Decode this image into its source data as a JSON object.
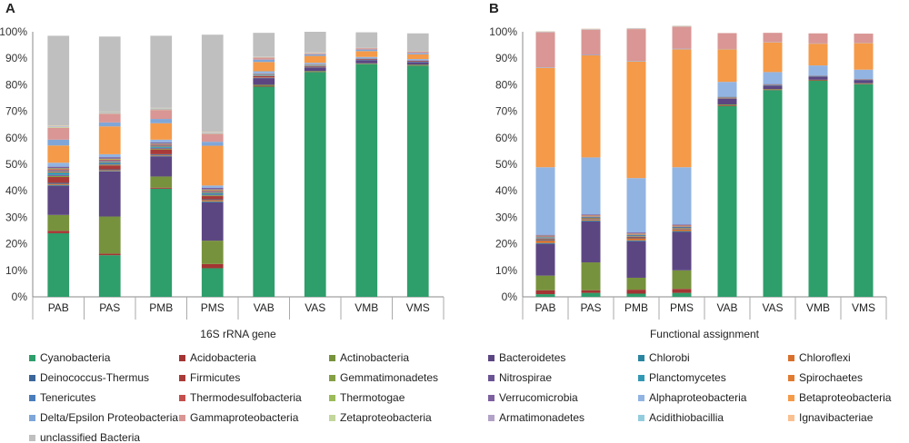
{
  "chart_data": [
    {
      "panel": "A",
      "type": "bar",
      "stacked": true,
      "xlabel": "16S rRNA gene",
      "ylabel": "",
      "ylim": [
        0,
        100
      ],
      "yticks": [
        "0%",
        "10%",
        "20%",
        "30%",
        "40%",
        "50%",
        "60%",
        "70%",
        "80%",
        "90%",
        "100%"
      ],
      "categories": [
        "PAB",
        "PAS",
        "PMB",
        "PMS",
        "VAB",
        "VAS",
        "VMB",
        "VMS"
      ],
      "series": [
        {
          "name": "Cyanobacteria",
          "values": [
            24,
            15.7,
            40.8,
            10.8,
            79.3,
            84.8,
            87.8,
            87.2
          ]
        },
        {
          "name": "Acidobacteria",
          "values": [
            0.9,
            0.6,
            0.4,
            1.6,
            0.3,
            0.1,
            0.1,
            0.1
          ]
        },
        {
          "name": "Actinobacteria",
          "values": [
            6,
            14,
            4.2,
            8.8,
            0.4,
            0.3,
            0.2,
            0.3
          ]
        },
        {
          "name": "Bacteroidetes",
          "values": [
            11,
            17,
            7.6,
            14.5,
            2.5,
            1.3,
            1.2,
            0.9
          ]
        },
        {
          "name": "Chlorobi",
          "values": [
            0.3,
            0.2,
            0.2,
            0.3,
            0.1,
            0.1,
            0.1,
            0.1
          ]
        },
        {
          "name": "Chloroflexi",
          "values": [
            0.4,
            0.3,
            0.3,
            0.5,
            0.1,
            0.1,
            0,
            0
          ]
        },
        {
          "name": "Deinococcus-Thermus",
          "values": [
            0.4,
            0.3,
            0.3,
            0.3,
            0.1,
            0.1,
            0.1,
            0.1
          ]
        },
        {
          "name": "Firmicutes",
          "values": [
            2.2,
            1.5,
            1.8,
            1.2,
            0.5,
            0.2,
            0.3,
            0.3
          ]
        },
        {
          "name": "Gemmatimonadetes",
          "values": [
            0.4,
            0.3,
            0.3,
            0.3,
            0.1,
            0.1,
            0,
            0
          ]
        },
        {
          "name": "Nitrospirae",
          "values": [
            0.4,
            0.3,
            0.3,
            0.3,
            0.1,
            0.1,
            0,
            0
          ]
        },
        {
          "name": "Planctomycetes",
          "values": [
            0.9,
            0.6,
            0.5,
            0.6,
            0.2,
            0.1,
            0.1,
            0.1
          ]
        },
        {
          "name": "Spirochaetes",
          "values": [
            0.4,
            0.3,
            0.3,
            0.3,
            0.1,
            0.1,
            0,
            0
          ]
        },
        {
          "name": "Tenericutes",
          "values": [
            0.4,
            0.3,
            0.3,
            0.3,
            0.1,
            0.1,
            0,
            0
          ]
        },
        {
          "name": "Thermodesulfobacteria",
          "values": [
            0.5,
            0.4,
            0.3,
            0.4,
            0.1,
            0.1,
            0,
            0
          ]
        },
        {
          "name": "Thermotogae",
          "values": [
            0.3,
            0.3,
            0.2,
            0.3,
            0.1,
            0.1,
            0,
            0
          ]
        },
        {
          "name": "Verrucomicrobia",
          "values": [
            0.6,
            0.6,
            0.5,
            0.6,
            0.2,
            0.1,
            0.1,
            0.1
          ]
        },
        {
          "name": "Alphaproteobacteria",
          "values": [
            1.5,
            1.1,
            1,
            0.9,
            0.8,
            0.5,
            0.5,
            0.5
          ]
        },
        {
          "name": "Betaproteobacteria",
          "values": [
            6.5,
            10.5,
            6.2,
            15,
            3.5,
            2.6,
            2.2,
            1.8
          ]
        },
        {
          "name": "Delta/Epsilon Proteobacteria",
          "values": [
            2.2,
            1.5,
            1.6,
            1.5,
            0.9,
            0.6,
            0.6,
            0.5
          ]
        },
        {
          "name": "Gammaproteobacteria",
          "values": [
            4.5,
            3.3,
            3.4,
            3,
            0.8,
            0.4,
            0.5,
            0.5
          ]
        },
        {
          "name": "Zetaproteobacteria",
          "values": [
            0.3,
            0.2,
            0.2,
            0.2,
            0.1,
            0.1,
            0.1,
            0.1
          ]
        },
        {
          "name": "Armatimonadetes",
          "values": [
            0.2,
            0.2,
            0.2,
            0.2,
            0.1,
            0,
            0,
            0
          ]
        },
        {
          "name": "Acidithiobacillia",
          "values": [
            0.2,
            0.2,
            0.2,
            0.2,
            0.1,
            0.1,
            0,
            0
          ]
        },
        {
          "name": "Ignavibacteriae",
          "values": [
            0.2,
            0.2,
            0.2,
            0.2,
            0.1,
            0.1,
            0,
            0
          ]
        },
        {
          "name": "unclassified Bacteria",
          "values": [
            33.8,
            28.3,
            27.2,
            36.6,
            8.9,
            7.8,
            5.9,
            6.8
          ]
        }
      ]
    },
    {
      "panel": "B",
      "type": "bar",
      "stacked": true,
      "xlabel": "Functional assignment",
      "ylabel": "",
      "ylim": [
        0,
        100
      ],
      "yticks": [
        "0%",
        "10%",
        "20%",
        "30%",
        "40%",
        "50%",
        "60%",
        "70%",
        "80%",
        "90%",
        "100%"
      ],
      "categories": [
        "PAB",
        "PAS",
        "PMB",
        "PMS",
        "VAB",
        "VAS",
        "VMB",
        "VMS"
      ],
      "series": [
        {
          "name": "Cyanobacteria",
          "values": [
            1,
            1.5,
            1.2,
            1.5,
            72,
            78,
            81.5,
            80.2
          ]
        },
        {
          "name": "Acidobacteria",
          "values": [
            1.5,
            1,
            1.5,
            1.5,
            0.3,
            0.2,
            0.2,
            0.2
          ]
        },
        {
          "name": "Actinobacteria",
          "values": [
            5.5,
            10.5,
            4.5,
            7,
            0.3,
            0.2,
            0.2,
            0.2
          ]
        },
        {
          "name": "Bacteroidetes",
          "values": [
            12,
            15.5,
            13.8,
            14.5,
            2.2,
            1.3,
            1.2,
            1.2
          ]
        },
        {
          "name": "Chlorobi",
          "values": [
            0.3,
            0.3,
            0.3,
            0.3,
            0.1,
            0.1,
            0.1,
            0.1
          ]
        },
        {
          "name": "Chloroflexi",
          "values": [
            0.9,
            0.4,
            0.8,
            0.6,
            0.1,
            0.1,
            0.1,
            0.1
          ]
        },
        {
          "name": "Deinococcus-Thermus",
          "values": [
            0.3,
            0.2,
            0.3,
            0.2,
            0.1,
            0.1,
            0.1,
            0.1
          ]
        },
        {
          "name": "Firmicutes",
          "values": [
            0.3,
            0.2,
            0.3,
            0.2,
            0.1,
            0.1,
            0,
            0
          ]
        },
        {
          "name": "Gemmatimonadetes",
          "values": [
            0.2,
            0.2,
            0.2,
            0.2,
            0.1,
            0,
            0,
            0
          ]
        },
        {
          "name": "Nitrospirae",
          "values": [
            0.2,
            0.2,
            0.2,
            0.2,
            0.1,
            0,
            0,
            0
          ]
        },
        {
          "name": "Planctomycetes",
          "values": [
            0.3,
            0.2,
            0.3,
            0.2,
            0.1,
            0.1,
            0,
            0
          ]
        },
        {
          "name": "Spirochaetes",
          "values": [
            0.2,
            0.2,
            0.2,
            0.2,
            0,
            0,
            0,
            0
          ]
        },
        {
          "name": "Tenericutes",
          "values": [
            0.1,
            0.1,
            0.1,
            0.1,
            0,
            0,
            0,
            0
          ]
        },
        {
          "name": "Thermodesulfobacteria",
          "values": [
            0.2,
            0.2,
            0.2,
            0.2,
            0,
            0,
            0,
            0
          ]
        },
        {
          "name": "Thermotogae",
          "values": [
            0.1,
            0.1,
            0.1,
            0.1,
            0,
            0,
            0,
            0
          ]
        },
        {
          "name": "Verrucomicrobia",
          "values": [
            0.3,
            0.3,
            0.3,
            0.3,
            0.1,
            0.1,
            0.1,
            0.1
          ]
        },
        {
          "name": "Alphaproteobacteria",
          "values": [
            25.5,
            21.5,
            20.5,
            21.6,
            5.5,
            4.5,
            3.8,
            3.5
          ]
        },
        {
          "name": "Betaproteobacteria",
          "values": [
            37.5,
            38.5,
            44,
            44.5,
            12.3,
            11.2,
            8.2,
            10
          ]
        },
        {
          "name": "Delta/Epsilon Proteobacteria",
          "values": [
            0.2,
            0.2,
            0.2,
            0.2,
            0.1,
            0.1,
            0.1,
            0.1
          ]
        },
        {
          "name": "Gammaproteobacteria",
          "values": [
            13.2,
            9.5,
            12,
            8.3,
            6,
            3.5,
            3.8,
            3.5
          ]
        },
        {
          "name": "Zetaproteobacteria",
          "values": [
            0.1,
            0.1,
            0.1,
            0.1,
            0,
            0,
            0,
            0
          ]
        },
        {
          "name": "Armatimonadetes",
          "values": [
            0.1,
            0.1,
            0.1,
            0.1,
            0,
            0,
            0,
            0
          ]
        },
        {
          "name": "Acidithiobacillia",
          "values": [
            0.1,
            0.1,
            0.1,
            0.1,
            0,
            0,
            0,
            0
          ]
        },
        {
          "name": "Ignavibacteriae",
          "values": [
            0.1,
            0.1,
            0.1,
            0.1,
            0,
            0,
            0,
            0
          ]
        },
        {
          "name": "unclassified Bacteria",
          "values": [
            0,
            0,
            0,
            0,
            0,
            0,
            0,
            0
          ]
        }
      ]
    }
  ],
  "colors": {
    "Cyanobacteria": "#2e9e6b",
    "Acidobacteria": "#a33433",
    "Actinobacteria": "#77923c",
    "Bacteroidetes": "#5c4682",
    "Chlorobi": "#2a85a0",
    "Chloroflexi": "#d8702c",
    "Deinococcus-Thermus": "#3b6699",
    "Firmicutes": "#a83b39",
    "Gemmatimonadetes": "#85a044",
    "Nitrospirae": "#6b5495",
    "Planctomycetes": "#3398b4",
    "Spirochaetes": "#e07b32",
    "Tenericutes": "#4a7dbb",
    "Thermodesulfobacteria": "#c4504d",
    "Thermotogae": "#9bbb59",
    "Verrucomicrobia": "#7d60a0",
    "Alphaproteobacteria": "#92b4e2",
    "Betaproteobacteria": "#f59a48",
    "Delta/Epsilon Proteobacteria": "#7fa6d8",
    "Gammaproteobacteria": "#d99694",
    "Zetaproteobacteria": "#c3d69b",
    "Armatimonadetes": "#b3a2c7",
    "Acidithiobacillia": "#93cddd",
    "Ignavibacteriae": "#fac090",
    "unclassified Bacteria": "#bfbfbf"
  },
  "legend": [
    "Cyanobacteria",
    "Acidobacteria",
    "Actinobacteria",
    "Bacteroidetes",
    "Chlorobi",
    "Chloroflexi",
    "Deinococcus-Thermus",
    "Firmicutes",
    "Gemmatimonadetes",
    "Nitrospirae",
    "Planctomycetes",
    "Spirochaetes",
    "Tenericutes",
    "Thermodesulfobacteria",
    "Thermotogae",
    "Verrucomicrobia",
    "Alphaproteobacteria",
    "Betaproteobacteria",
    "Delta/Epsilon Proteobacteria",
    "Gammaproteobacteria",
    "Zetaproteobacteria",
    "Armatimonadetes",
    "Acidithiobacillia",
    "Ignavibacteriae",
    "unclassified Bacteria"
  ]
}
